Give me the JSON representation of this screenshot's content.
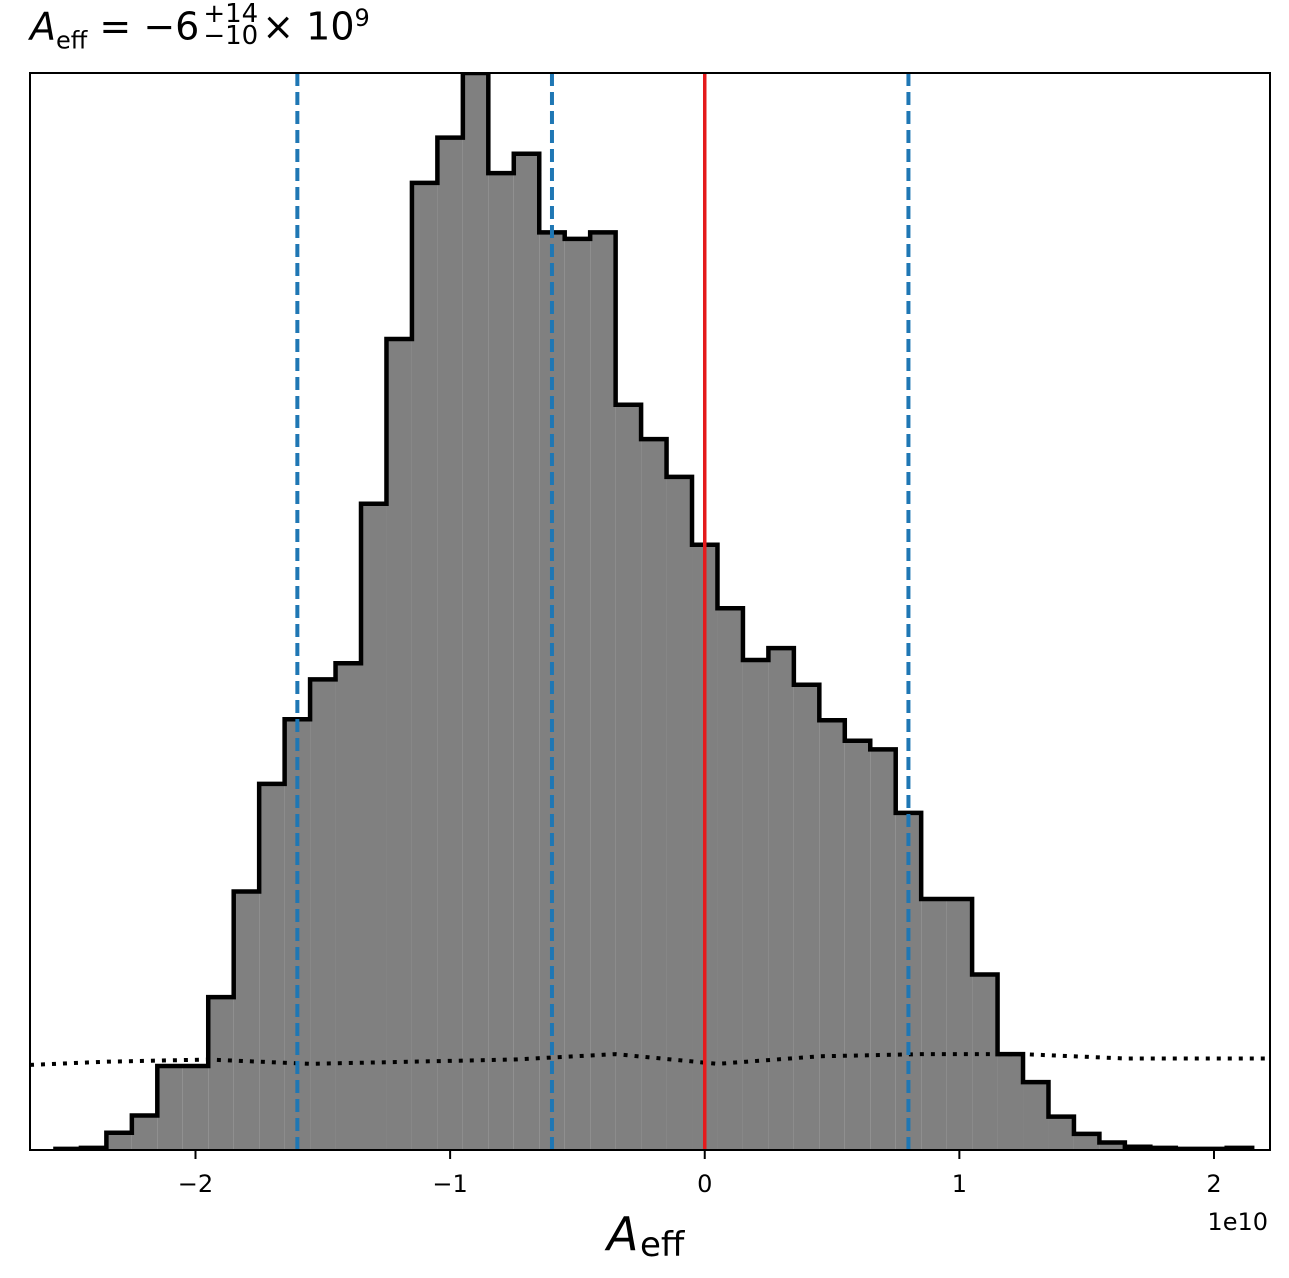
{
  "title": {
    "symbol": "A",
    "subscript": "eff",
    "equals": "= −6",
    "superscript": "+14",
    "lower": "−10",
    "times": "× 10",
    "exponent": "9"
  },
  "chart_data": {
    "type": "histogram",
    "title": "A_eff = −6 (+14, −10) × 10^9",
    "xlabel": "A_eff",
    "x_offset_label": "1e10",
    "xlim": [
      -26500000000.0,
      22200000000.0
    ],
    "ylim": [
      0,
      1.0
    ],
    "x_ticks": [
      -2,
      -1,
      0,
      1,
      2
    ],
    "x_tick_labels": [
      "−2",
      "−1",
      "0",
      "1",
      "2"
    ],
    "y_ticks_visible": false,
    "bin_edges": [
      -25500000000.0,
      -24500000000.0,
      -23500000000.0,
      -22500000000.0,
      -21500000000.0,
      -20500000000.0,
      -19500000000.0,
      -18500000000.0,
      -17500000000.0,
      -16500000000.0,
      -15500000000.0,
      -14500000000.0,
      -13500000000.0,
      -12500000000.0,
      -11500000000.0,
      -10500000000.0,
      -9500000000.0,
      -8500000000.0,
      -7500000000.0,
      -6500000000.0,
      -5500000000.0,
      -4500000000.0,
      -3500000000.0,
      -2500000000.0,
      -1500000000.0,
      -500000000.0,
      500000000.0,
      1500000000.0,
      2500000000.0,
      3500000000.0,
      4500000000.0,
      5500000000.0,
      6500000000.0,
      7500000000.0,
      8500000000.0,
      9500000000.0,
      10500000000.0,
      11500000000.0,
      12500000000.0,
      13500000000.0,
      14500000000.0,
      15500000000.0,
      16500000000.0,
      17500000000.0,
      18500000000.0,
      19500000000.0,
      20500000000.0,
      21500000000.0
    ],
    "counts": [
      0.001,
      0.002,
      0.016,
      0.032,
      0.078,
      0.078,
      0.142,
      0.24,
      0.34,
      0.4,
      0.437,
      0.452,
      0.6,
      0.753,
      0.898,
      0.94,
      1.0,
      0.907,
      0.925,
      0.852,
      0.846,
      0.852,
      0.692,
      0.66,
      0.625,
      0.562,
      0.503,
      0.455,
      0.466,
      0.432,
      0.399,
      0.38,
      0.372,
      0.313,
      0.233,
      0.233,
      0.163,
      0.089,
      0.063,
      0.031,
      0.015,
      0.007,
      0.003,
      0.002,
      0.001,
      0.001,
      0.002
    ],
    "prior_dotted": [
      {
        "x": -26500000000.0,
        "y": 0.079
      },
      {
        "x": -23500000000.0,
        "y": 0.082
      },
      {
        "x": -19500000000.0,
        "y": 0.084
      },
      {
        "x": -15500000000.0,
        "y": 0.08
      },
      {
        "x": -11500000000.0,
        "y": 0.082
      },
      {
        "x": -7500000000.0,
        "y": 0.084
      },
      {
        "x": -3500000000.0,
        "y": 0.089
      },
      {
        "x": 500000000.0,
        "y": 0.08
      },
      {
        "x": 4500000000.0,
        "y": 0.087
      },
      {
        "x": 8500000000.0,
        "y": 0.089
      },
      {
        "x": 12500000000.0,
        "y": 0.089
      },
      {
        "x": 16500000000.0,
        "y": 0.085
      },
      {
        "x": 22200000000.0,
        "y": 0.085
      }
    ],
    "quantile_lines": [
      -16000000000.0,
      -6000000000.0,
      8000000000.0
    ],
    "truth_line": 0,
    "colors": {
      "fill": "#808080",
      "edge": "#000000",
      "quantile": "#1f77b4",
      "truth": "#e41a1c",
      "prior": "#000000"
    }
  }
}
